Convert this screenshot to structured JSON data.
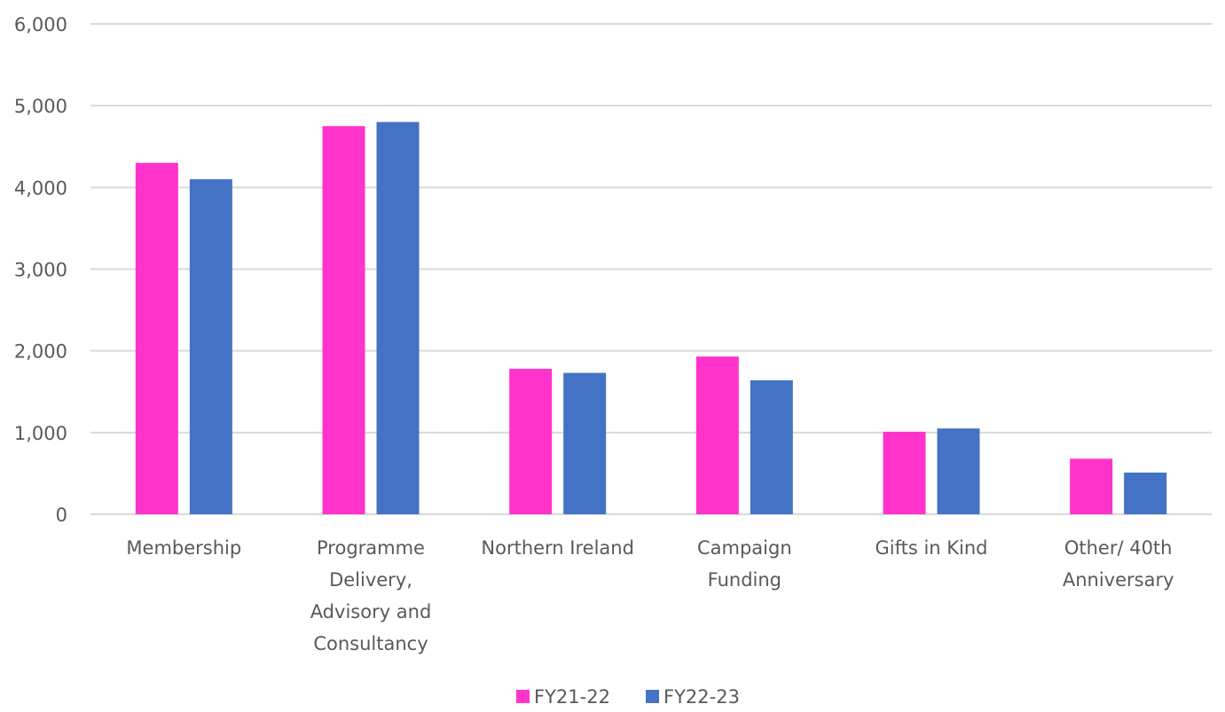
{
  "chart_data": {
    "type": "bar",
    "title": "",
    "xlabel": "",
    "ylabel": "",
    "ylim": [
      0,
      6000
    ],
    "yticks": [
      0,
      1000,
      2000,
      3000,
      4000,
      5000,
      6000
    ],
    "ytick_labels": [
      "0",
      "1,000",
      "2,000",
      "3,000",
      "4,000",
      "5,000",
      "6,000"
    ],
    "grid": true,
    "legend_position": "bottom",
    "categories": [
      [
        "Membership"
      ],
      [
        "Programme",
        "Delivery,",
        "Advisory and",
        "Consultancy"
      ],
      [
        "Northern Ireland"
      ],
      [
        "Campaign",
        "Funding"
      ],
      [
        "Gifts in Kind"
      ],
      [
        "Other/ 40th",
        "Anniversary"
      ]
    ],
    "series": [
      {
        "name": "FY21-22",
        "color": "#ff33cc",
        "values": [
          4300,
          4750,
          1780,
          1930,
          1010,
          680
        ]
      },
      {
        "name": "FY22-23",
        "color": "#4472c4",
        "values": [
          4100,
          4800,
          1730,
          1640,
          1050,
          510
        ]
      }
    ]
  }
}
